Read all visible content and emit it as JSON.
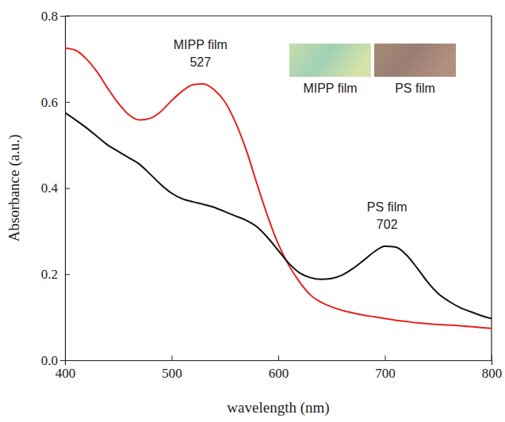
{
  "chart_data": {
    "type": "line",
    "x_label": "wavelength (nm)",
    "y_label": "Absorbance (a.u.)",
    "x": [
      400,
      410,
      420,
      430,
      440,
      450,
      460,
      470,
      480,
      490,
      500,
      510,
      520,
      530,
      540,
      550,
      560,
      570,
      580,
      590,
      600,
      610,
      620,
      630,
      640,
      650,
      660,
      670,
      680,
      690,
      700,
      710,
      720,
      730,
      740,
      750,
      760,
      770,
      780,
      790,
      800
    ],
    "series": [
      {
        "name": "MIPP film",
        "color": "#e8201c",
        "peak": 527,
        "values": [
          0.725,
          0.72,
          0.7,
          0.67,
          0.632,
          0.597,
          0.57,
          0.558,
          0.562,
          0.578,
          0.603,
          0.625,
          0.64,
          0.642,
          0.628,
          0.6,
          0.552,
          0.488,
          0.41,
          0.335,
          0.27,
          0.22,
          0.182,
          0.152,
          0.135,
          0.124,
          0.116,
          0.11,
          0.105,
          0.101,
          0.097,
          0.093,
          0.09,
          0.087,
          0.085,
          0.083,
          0.082,
          0.08,
          0.078,
          0.076,
          0.074
        ]
      },
      {
        "name": "PS film",
        "color": "#111111",
        "peak": 702,
        "values": [
          0.575,
          0.558,
          0.54,
          0.52,
          0.5,
          0.485,
          0.47,
          0.455,
          0.432,
          0.408,
          0.388,
          0.375,
          0.368,
          0.362,
          0.355,
          0.345,
          0.335,
          0.325,
          0.31,
          0.285,
          0.255,
          0.225,
          0.203,
          0.192,
          0.188,
          0.19,
          0.198,
          0.213,
          0.232,
          0.252,
          0.265,
          0.263,
          0.245,
          0.215,
          0.182,
          0.155,
          0.137,
          0.123,
          0.113,
          0.104,
          0.097
        ]
      }
    ],
    "xlim": [
      400,
      800
    ],
    "xticks": [
      400,
      500,
      600,
      700,
      800
    ],
    "ylim": [
      0,
      0.8
    ],
    "yticks": [
      {
        "value": 0,
        "label": "0.0"
      },
      {
        "value": 0.2,
        "label": "0.2"
      },
      {
        "value": 0.4,
        "label": "0.4"
      },
      {
        "value": 0.6,
        "label": "0.6"
      },
      {
        "value": 0.8,
        "label": "0.8"
      }
    ],
    "grid": false
  }
}
